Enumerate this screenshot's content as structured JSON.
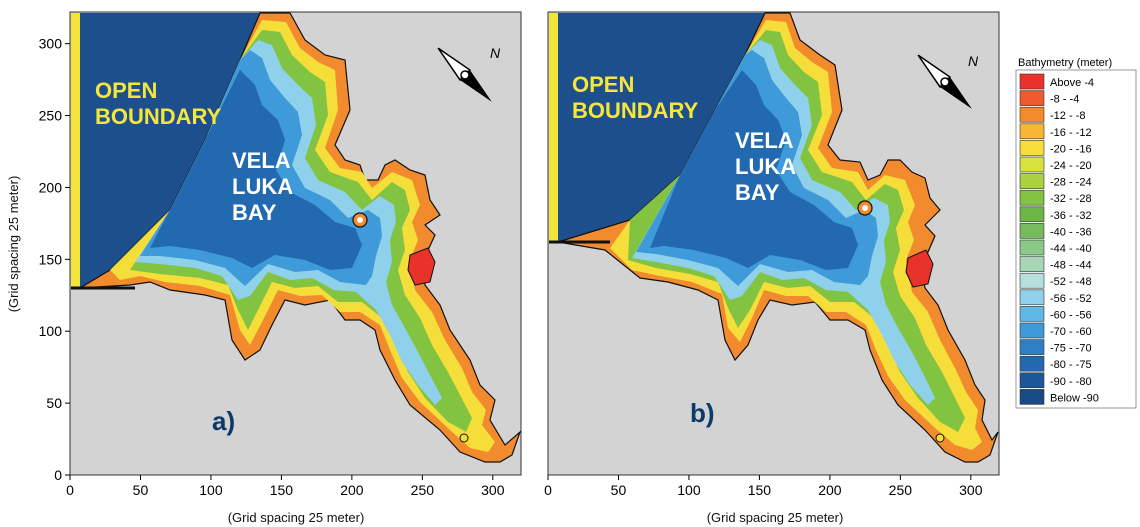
{
  "figure": {
    "panels": [
      {
        "id": "a",
        "letter": "a)",
        "open_boundary_label": [
          "OPEN",
          "BOUNDARY"
        ],
        "bay_label": [
          "VELA",
          "LUKA",
          "BAY"
        ]
      },
      {
        "id": "b",
        "letter": "b)",
        "open_boundary_label": [
          "OPEN",
          "BOUNDARY"
        ],
        "bay_label": [
          "VELA",
          "LUKA",
          "BAY"
        ]
      }
    ],
    "x_axis_label": "(Grid spacing 25 meter)",
    "y_axis_label": "(Grid spacing 25 meter)",
    "x_ticks": [
      "0",
      "50",
      "100",
      "150",
      "200",
      "250",
      "300"
    ],
    "y_ticks": [
      "0",
      "50",
      "100",
      "150",
      "200",
      "250",
      "300"
    ],
    "x_range": [
      0,
      320
    ],
    "y_range": [
      0,
      322
    ],
    "north_arrow_letter": "N"
  },
  "legend": {
    "title": "Bathymetry (meter)",
    "entries": [
      {
        "label": "Above  -4",
        "color": "#e8322a"
      },
      {
        "label": "-8 -  -4",
        "color": "#ee5a2e"
      },
      {
        "label": "-12 -  -8",
        "color": "#f28a2e"
      },
      {
        "label": "-16 - -12",
        "color": "#f7b733"
      },
      {
        "label": "-20 - -16",
        "color": "#f5de3a"
      },
      {
        "label": "-24 - -20",
        "color": "#d8e23c"
      },
      {
        "label": "-28 - -24",
        "color": "#a9d23e"
      },
      {
        "label": "-32 - -28",
        "color": "#82c441"
      },
      {
        "label": "-36 - -32",
        "color": "#6ab647"
      },
      {
        "label": "-40 - -36",
        "color": "#76bb5e"
      },
      {
        "label": "-44 - -40",
        "color": "#8cc888"
      },
      {
        "label": "-48 - -44",
        "color": "#a6d6b4"
      },
      {
        "label": "-52 - -48",
        "color": "#b5e0dc"
      },
      {
        "label": "-56 - -52",
        "color": "#8fd0ea"
      },
      {
        "label": "-60 - -56",
        "color": "#5fb8e6"
      },
      {
        "label": "-70 - -60",
        "color": "#3e9ad8"
      },
      {
        "label": "-75 - -70",
        "color": "#2e7fc6"
      },
      {
        "label": "-80 - -75",
        "color": "#2369b0"
      },
      {
        "label": "-90 - -80",
        "color": "#1c579a"
      },
      {
        "label": "Below -90",
        "color": "#184a88"
      }
    ]
  },
  "colors": {
    "land": "#d3d3d3",
    "open_boundary_strip": "#f2e43a",
    "deep_water": "#1c4f8c"
  }
}
